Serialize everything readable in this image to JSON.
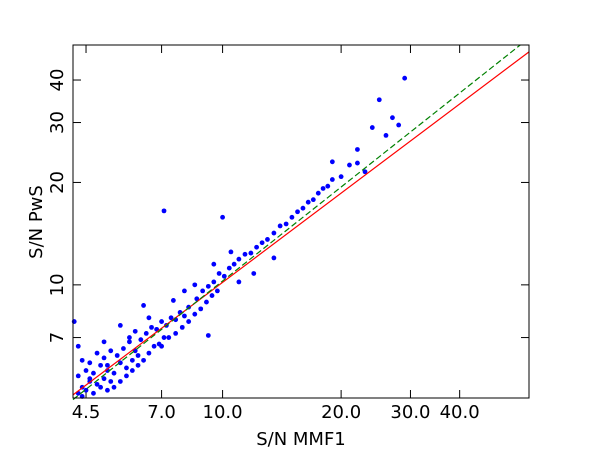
{
  "chart_data": {
    "type": "scatter",
    "xlabel": "S/N MMF1",
    "ylabel": "S/N PwS",
    "color": "#0000ff",
    "xlog": true,
    "ylog": true,
    "xlim": [
      4.17,
      60
    ],
    "ylim": [
      4.65,
      50.7
    ],
    "xticks": [
      4.5,
      {
        "value": 7,
        "label": "7.0"
      },
      {
        "value": 10,
        "label": "10.0"
      },
      {
        "value": 20,
        "label": "20.0"
      },
      {
        "value": 30,
        "label": "30.0"
      },
      {
        "value": 40,
        "label": "40.0"
      }
    ],
    "yticks": [
      7,
      10,
      20,
      30,
      40
    ],
    "lines": [
      {
        "color": "#ff0000",
        "style": "solid",
        "x": [
          4.17,
          60
        ],
        "y": [
          4.75,
          48.4
        ]
      },
      {
        "color": "#008000",
        "style": "dashed",
        "x": [
          4.17,
          57
        ],
        "y": [
          4.6,
          50.7
        ]
      }
    ],
    "x": [
      4.3,
      4.4,
      4.5,
      4.6,
      4.7,
      4.8,
      4.9,
      5.0,
      5.1,
      5.2,
      4.3,
      4.5,
      4.7,
      4.9,
      5.1,
      5.3,
      5.5,
      5.7,
      5.9,
      6.1,
      4.4,
      4.6,
      4.8,
      5.0,
      5.2,
      5.4,
      5.6,
      5.8,
      6.0,
      6.2,
      5.3,
      5.5,
      5.7,
      5.9,
      6.1,
      6.3,
      6.5,
      6.7,
      6.9,
      7.1,
      6.4,
      6.6,
      6.8,
      7.0,
      7.2,
      7.4,
      7.6,
      7.8,
      8.0,
      8.2,
      7.0,
      7.3,
      7.6,
      7.9,
      8.2,
      8.5,
      8.8,
      9.1,
      9.4,
      9.7,
      8.6,
      8.9,
      9.2,
      9.5,
      9.8,
      10.1,
      10.4,
      10.7,
      11.0,
      11.4,
      11.8,
      12.2,
      12.6,
      13.0,
      13.5,
      14.0,
      14.5,
      15.0,
      15.5,
      16.0,
      16.5,
      17.0,
      17.5,
      18.0,
      18.5,
      19.0,
      20.0,
      21.0,
      22.0,
      23.0,
      7.1,
      10.0,
      25.0,
      29.0,
      4.2,
      4.3,
      5.5,
      6.3,
      9.2,
      24.0,
      26.0,
      27.0,
      28.0,
      22.0,
      19.0,
      12.0,
      13.5,
      8.0,
      6.0,
      5.0,
      9.5,
      10.5,
      11.0,
      8.5,
      7.5,
      6.5,
      5.8,
      5.1,
      4.6,
      4.4
    ],
    "values": [
      4.8,
      5.0,
      4.9,
      5.2,
      4.8,
      5.1,
      5.0,
      5.3,
      4.9,
      5.2,
      5.4,
      5.6,
      5.5,
      5.8,
      5.6,
      5.5,
      5.9,
      5.7,
      6.0,
      6.2,
      6.0,
      5.9,
      6.3,
      6.1,
      6.4,
      6.2,
      6.5,
      6.8,
      6.4,
      6.9,
      5.0,
      5.2,
      5.4,
      5.6,
      5.8,
      6.0,
      6.3,
      6.6,
      6.7,
      7.0,
      7.2,
      7.5,
      7.4,
      7.8,
      7.6,
      8.0,
      7.9,
      8.3,
      8.1,
      8.6,
      6.6,
      7.0,
      7.2,
      7.5,
      7.8,
      8.2,
      8.5,
      8.9,
      9.3,
      9.6,
      9.1,
      9.6,
      9.9,
      10.2,
      10.8,
      10.6,
      11.2,
      11.5,
      11.9,
      12.3,
      12.4,
      12.9,
      13.3,
      13.6,
      14.2,
      14.9,
      15.1,
      15.8,
      16.4,
      16.8,
      17.5,
      17.8,
      18.6,
      19.2,
      19.5,
      20.4,
      20.8,
      22.5,
      22.8,
      21.5,
      16.5,
      15.8,
      35.0,
      40.5,
      7.8,
      6.6,
      7.6,
      8.7,
      7.1,
      29.0,
      27.5,
      31.0,
      29.5,
      25.0,
      23.0,
      10.8,
      12.0,
      9.6,
      7.3,
      6.8,
      11.5,
      12.5,
      10.2,
      10.0,
      9.0,
      8.0,
      7.0,
      5.8,
      5.3,
      4.7
    ]
  }
}
